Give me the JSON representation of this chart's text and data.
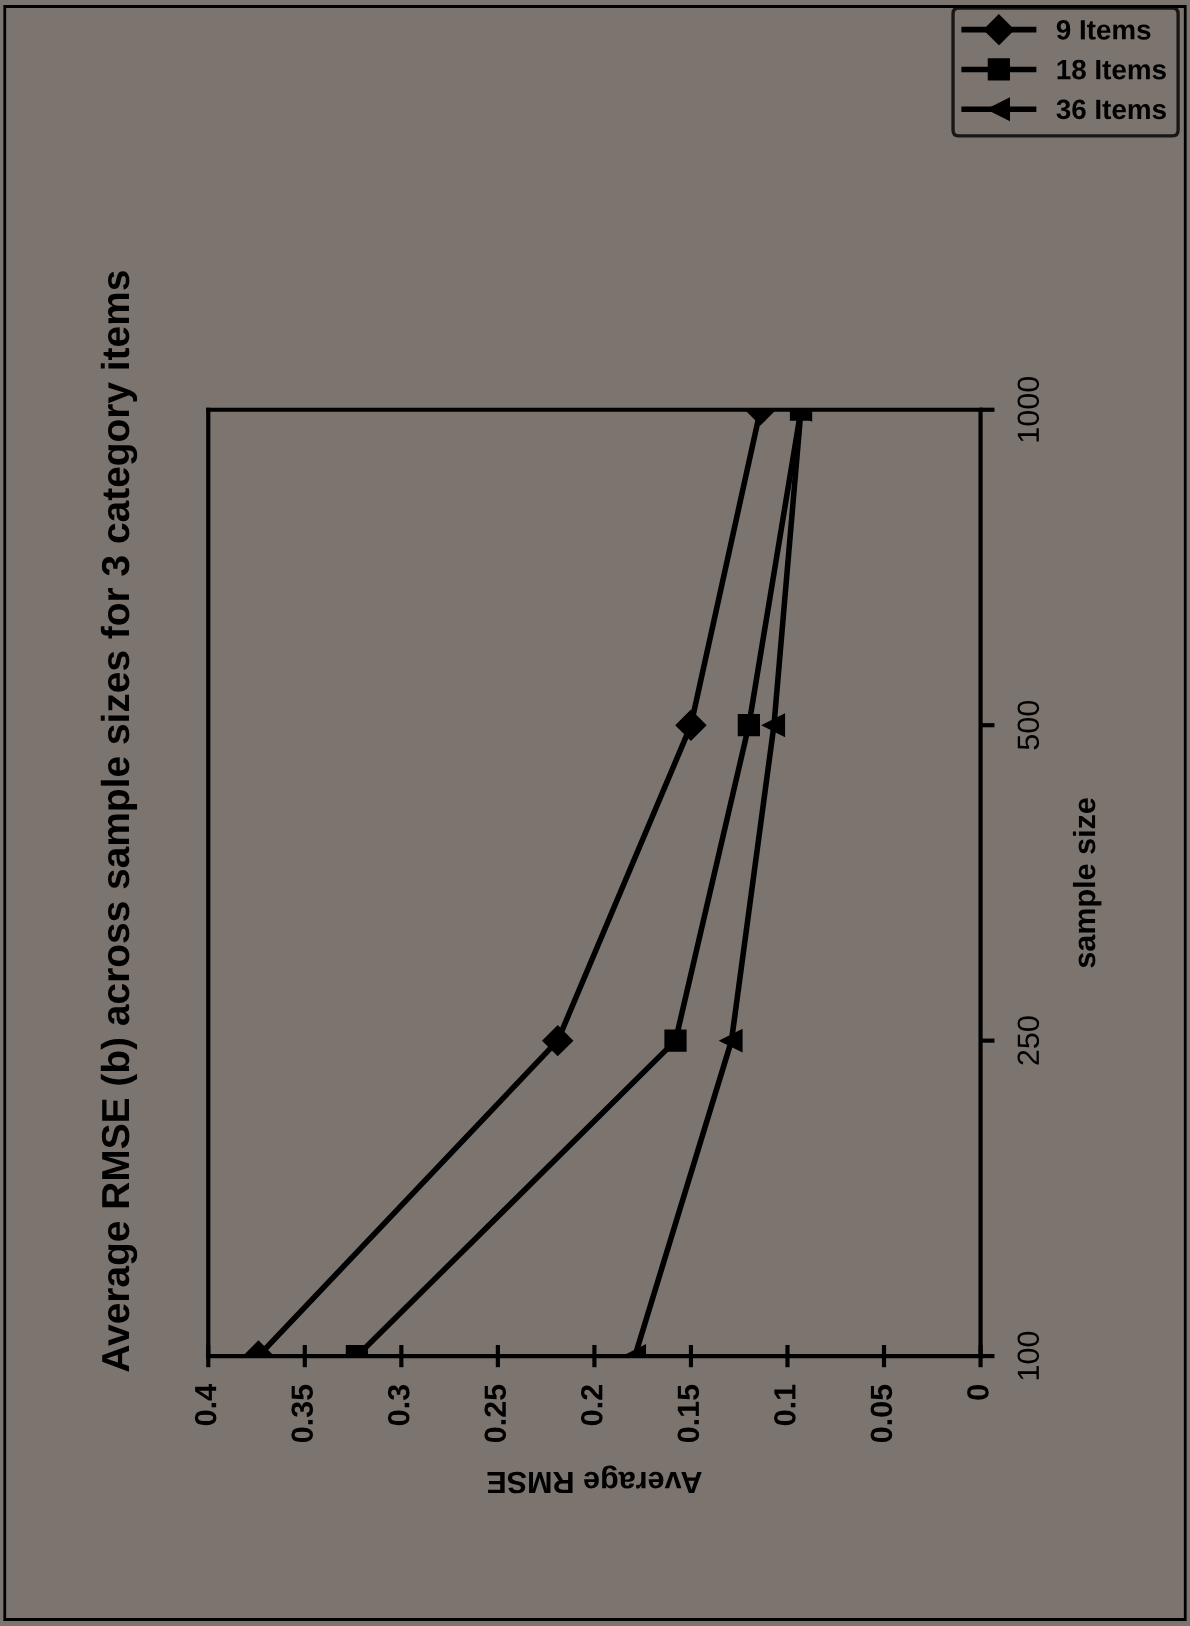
{
  "chart_data": {
    "type": "line",
    "orientation": "horizontal",
    "title": "Average RMSE (b) across sample sizes for 3 category items",
    "xlabel": "Average RMSE",
    "ylabel": "sample size",
    "categories": [
      "1000",
      "500",
      "250",
      "100"
    ],
    "series": [
      {
        "name": "9 Items",
        "color": "#000000",
        "marker": "diamond",
        "values": [
          0.114,
          0.15,
          0.219,
          0.374
        ]
      },
      {
        "name": "18 Items",
        "color": "#000000",
        "marker": "square",
        "values": [
          0.093,
          0.12,
          0.158,
          0.323
        ]
      },
      {
        "name": "36 Items",
        "color": "#000000",
        "marker": "triangle",
        "values": [
          0.093,
          0.107,
          0.129,
          0.179
        ]
      }
    ],
    "xlim": [
      0.4,
      0
    ],
    "xticks": [
      0.4,
      0.35,
      0.3,
      0.25,
      0.2,
      0.15,
      0.1,
      0.05,
      0
    ],
    "grid": false,
    "legend": "top right",
    "line_style": "solid"
  }
}
